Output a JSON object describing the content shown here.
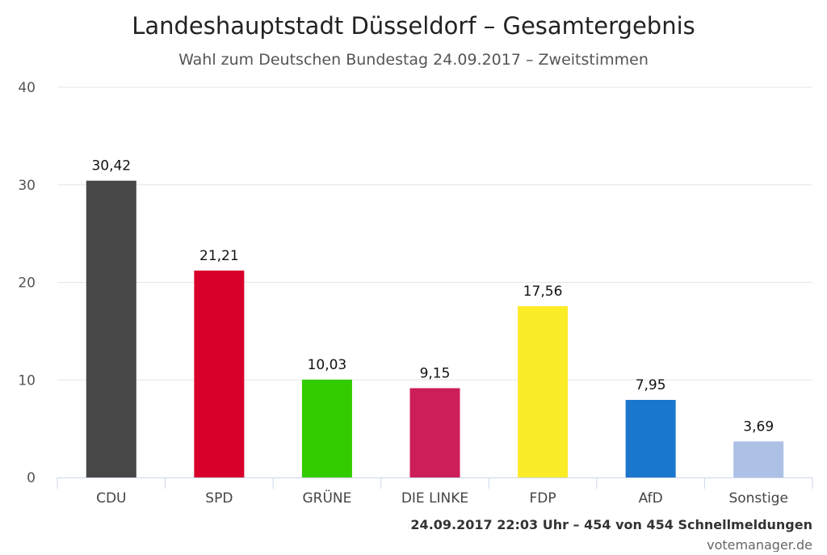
{
  "chart_data": {
    "type": "bar",
    "title": "Landeshauptstadt Düsseldorf – Gesamtergebnis",
    "subtitle": "Wahl zum Deutschen Bundestag 24.09.2017 – Zweitstimmen",
    "categories": [
      "CDU",
      "SPD",
      "GRÜNE",
      "DIE LINKE",
      "FDP",
      "AfD",
      "Sonstige"
    ],
    "values": [
      30.42,
      21.21,
      10.03,
      9.15,
      17.56,
      7.95,
      3.69
    ],
    "data_labels": [
      "30,42",
      "21,21",
      "10,03",
      "9,15",
      "17,56",
      "7,95",
      "3,69"
    ],
    "colors": [
      "#474747",
      "#d8002b",
      "#33cc00",
      "#cc1e59",
      "#fcec28",
      "#1b76cd",
      "#adc0e6"
    ],
    "ylim": [
      0,
      40
    ],
    "yticks": [
      0,
      10,
      20,
      30,
      40
    ],
    "grid": true,
    "xlabel": "",
    "ylabel": "",
    "legend": "none"
  },
  "footer": {
    "meta": "24.09.2017 22:03 Uhr – 454 von 454 Schnellmeldungen",
    "credit": "votemanager.de"
  }
}
